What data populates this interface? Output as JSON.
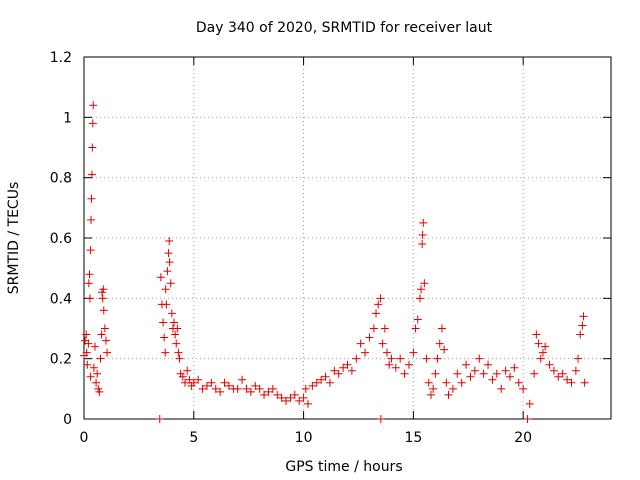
{
  "chart_data": {
    "type": "scatter",
    "title": "Day 340 of 2020, SRMTID for receiver laut",
    "xlabel": "GPS time / hours",
    "ylabel": "SRMTID / TECUs",
    "xlim": [
      0,
      24
    ],
    "ylim": [
      0,
      1.2
    ],
    "xticks": [
      0,
      5,
      10,
      15,
      20
    ],
    "xtick_labels": [
      "0",
      "5",
      "10",
      "15",
      "20"
    ],
    "yticks": [
      0,
      0.2,
      0.4,
      0.6,
      0.8,
      1.0,
      1.2
    ],
    "ytick_labels": [
      "0",
      "0.2",
      "0.4",
      "0.6",
      "0.8",
      "1",
      "1.2"
    ],
    "grid": true,
    "marker": "plus",
    "colors": {
      "series": "#e00000",
      "grid": "#a0a0a0",
      "axis": "#000000"
    },
    "series": [
      {
        "name": "SRMTID",
        "points": [
          [
            0.0,
            0.21
          ],
          [
            0.05,
            0.26
          ],
          [
            0.1,
            0.28
          ],
          [
            0.12,
            0.22
          ],
          [
            0.15,
            0.18
          ],
          [
            0.2,
            0.25
          ],
          [
            0.22,
            0.45
          ],
          [
            0.25,
            0.48
          ],
          [
            0.27,
            0.4
          ],
          [
            0.3,
            0.14
          ],
          [
            0.3,
            0.56
          ],
          [
            0.32,
            0.66
          ],
          [
            0.34,
            0.73
          ],
          [
            0.36,
            0.81
          ],
          [
            0.38,
            0.9
          ],
          [
            0.4,
            0.98
          ],
          [
            0.42,
            1.04
          ],
          [
            0.45,
            0.17
          ],
          [
            0.5,
            0.24
          ],
          [
            0.55,
            0.12
          ],
          [
            0.6,
            0.15
          ],
          [
            0.65,
            0.1
          ],
          [
            0.7,
            0.09
          ],
          [
            0.75,
            0.2
          ],
          [
            0.8,
            0.28
          ],
          [
            0.82,
            0.42
          ],
          [
            0.85,
            0.4
          ],
          [
            0.88,
            0.43
          ],
          [
            0.9,
            0.36
          ],
          [
            0.95,
            0.3
          ],
          [
            1.0,
            0.26
          ],
          [
            1.05,
            0.22
          ],
          [
            3.45,
            0.0
          ],
          [
            3.5,
            0.47
          ],
          [
            3.55,
            0.38
          ],
          [
            3.6,
            0.32
          ],
          [
            3.65,
            0.27
          ],
          [
            3.7,
            0.22
          ],
          [
            3.72,
            0.43
          ],
          [
            3.75,
            0.38
          ],
          [
            3.8,
            0.49
          ],
          [
            3.85,
            0.55
          ],
          [
            3.88,
            0.59
          ],
          [
            3.9,
            0.52
          ],
          [
            3.95,
            0.45
          ],
          [
            4.0,
            0.35
          ],
          [
            4.05,
            0.3
          ],
          [
            4.1,
            0.32
          ],
          [
            4.15,
            0.28
          ],
          [
            4.2,
            0.25
          ],
          [
            4.25,
            0.3
          ],
          [
            4.3,
            0.22
          ],
          [
            4.35,
            0.2
          ],
          [
            4.4,
            0.15
          ],
          [
            4.5,
            0.14
          ],
          [
            4.6,
            0.12
          ],
          [
            4.7,
            0.16
          ],
          [
            4.8,
            0.13
          ],
          [
            4.9,
            0.11
          ],
          [
            5.0,
            0.12
          ],
          [
            5.2,
            0.13
          ],
          [
            5.4,
            0.1
          ],
          [
            5.6,
            0.11
          ],
          [
            5.8,
            0.12
          ],
          [
            6.0,
            0.1
          ],
          [
            6.2,
            0.09
          ],
          [
            6.4,
            0.12
          ],
          [
            6.6,
            0.11
          ],
          [
            6.8,
            0.1
          ],
          [
            7.0,
            0.1
          ],
          [
            7.2,
            0.13
          ],
          [
            7.4,
            0.1
          ],
          [
            7.6,
            0.09
          ],
          [
            7.8,
            0.11
          ],
          [
            8.0,
            0.1
          ],
          [
            8.2,
            0.08
          ],
          [
            8.4,
            0.09
          ],
          [
            8.6,
            0.1
          ],
          [
            8.8,
            0.08
          ],
          [
            9.0,
            0.07
          ],
          [
            9.2,
            0.06
          ],
          [
            9.4,
            0.07
          ],
          [
            9.6,
            0.08
          ],
          [
            9.8,
            0.06
          ],
          [
            10.0,
            0.07
          ],
          [
            10.1,
            0.1
          ],
          [
            10.2,
            0.05
          ],
          [
            10.4,
            0.11
          ],
          [
            10.6,
            0.12
          ],
          [
            10.8,
            0.13
          ],
          [
            11.0,
            0.14
          ],
          [
            11.2,
            0.12
          ],
          [
            11.4,
            0.16
          ],
          [
            11.6,
            0.15
          ],
          [
            11.8,
            0.17
          ],
          [
            12.0,
            0.18
          ],
          [
            12.2,
            0.16
          ],
          [
            12.4,
            0.2
          ],
          [
            12.6,
            0.25
          ],
          [
            12.8,
            0.22
          ],
          [
            13.0,
            0.27
          ],
          [
            13.2,
            0.3
          ],
          [
            13.3,
            0.35
          ],
          [
            13.4,
            0.38
          ],
          [
            13.5,
            0.4
          ],
          [
            13.52,
            0.0
          ],
          [
            13.6,
            0.25
          ],
          [
            13.7,
            0.3
          ],
          [
            13.8,
            0.22
          ],
          [
            13.9,
            0.18
          ],
          [
            14.0,
            0.2
          ],
          [
            14.2,
            0.17
          ],
          [
            14.4,
            0.2
          ],
          [
            14.6,
            0.15
          ],
          [
            14.8,
            0.18
          ],
          [
            15.0,
            0.22
          ],
          [
            15.1,
            0.3
          ],
          [
            15.2,
            0.33
          ],
          [
            15.3,
            0.4
          ],
          [
            15.35,
            0.43
          ],
          [
            15.4,
            0.58
          ],
          [
            15.42,
            0.61
          ],
          [
            15.45,
            0.65
          ],
          [
            15.5,
            0.45
          ],
          [
            15.6,
            0.2
          ],
          [
            15.7,
            0.12
          ],
          [
            15.8,
            0.08
          ],
          [
            15.9,
            0.1
          ],
          [
            16.0,
            0.15
          ],
          [
            16.1,
            0.2
          ],
          [
            16.2,
            0.25
          ],
          [
            16.3,
            0.3
          ],
          [
            16.4,
            0.23
          ],
          [
            16.5,
            0.12
          ],
          [
            16.6,
            0.08
          ],
          [
            16.8,
            0.1
          ],
          [
            17.0,
            0.15
          ],
          [
            17.2,
            0.12
          ],
          [
            17.4,
            0.18
          ],
          [
            17.6,
            0.14
          ],
          [
            17.8,
            0.16
          ],
          [
            18.0,
            0.2
          ],
          [
            18.2,
            0.15
          ],
          [
            18.4,
            0.18
          ],
          [
            18.6,
            0.13
          ],
          [
            18.8,
            0.15
          ],
          [
            19.0,
            0.1
          ],
          [
            19.2,
            0.16
          ],
          [
            19.4,
            0.14
          ],
          [
            19.6,
            0.17
          ],
          [
            19.8,
            0.12
          ],
          [
            20.0,
            0.1
          ],
          [
            20.2,
            0.0
          ],
          [
            20.3,
            0.05
          ],
          [
            20.5,
            0.15
          ],
          [
            20.6,
            0.28
          ],
          [
            20.7,
            0.25
          ],
          [
            20.8,
            0.2
          ],
          [
            20.9,
            0.22
          ],
          [
            21.0,
            0.24
          ],
          [
            21.2,
            0.18
          ],
          [
            21.4,
            0.16
          ],
          [
            21.6,
            0.14
          ],
          [
            21.8,
            0.15
          ],
          [
            22.0,
            0.13
          ],
          [
            22.2,
            0.12
          ],
          [
            22.4,
            0.16
          ],
          [
            22.5,
            0.2
          ],
          [
            22.6,
            0.28
          ],
          [
            22.7,
            0.31
          ],
          [
            22.75,
            0.34
          ],
          [
            22.8,
            0.12
          ]
        ]
      }
    ]
  }
}
